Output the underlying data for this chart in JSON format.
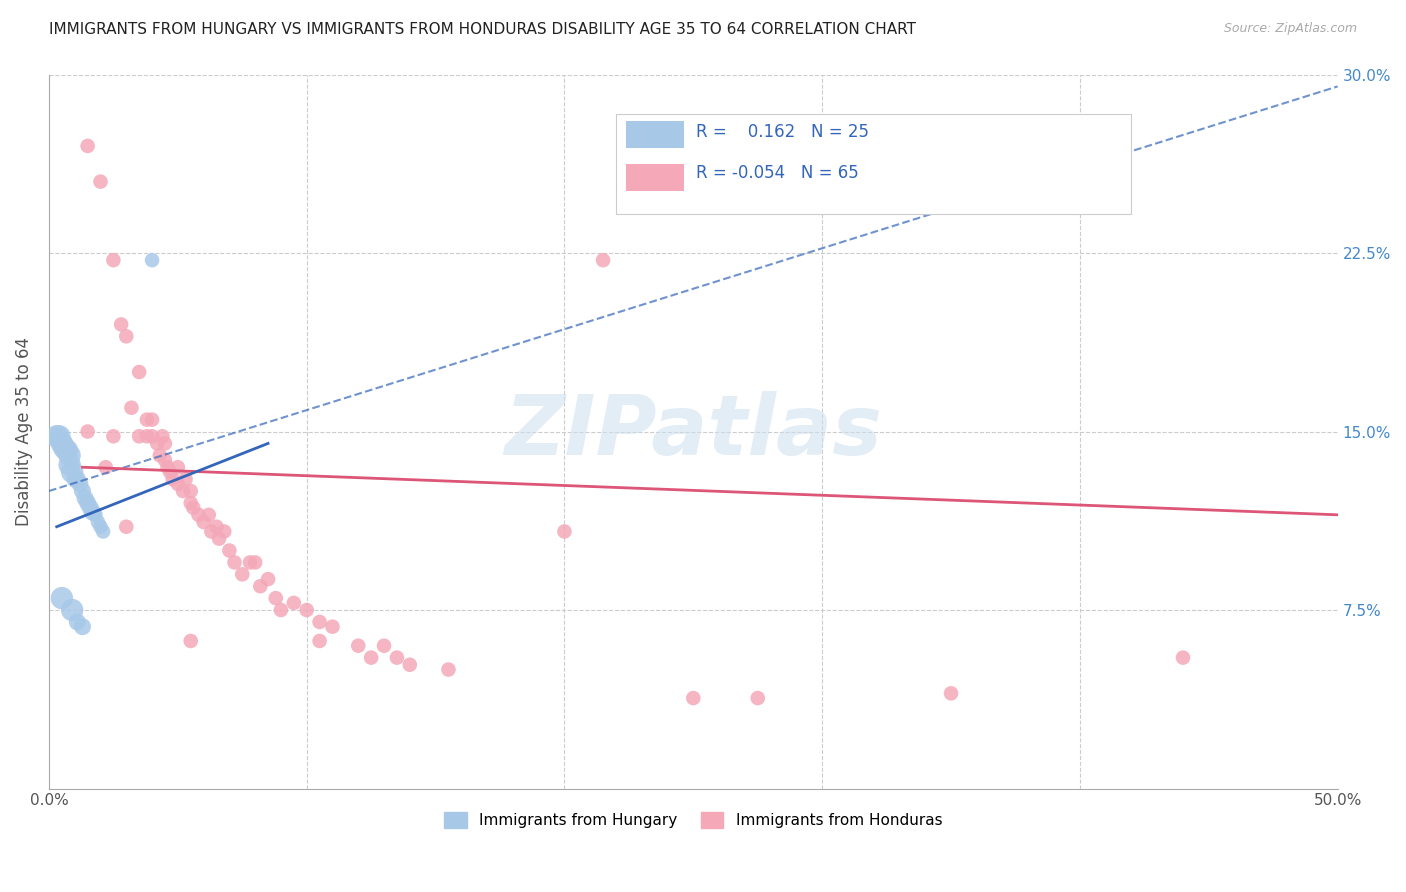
{
  "title": "IMMIGRANTS FROM HUNGARY VS IMMIGRANTS FROM HONDURAS DISABILITY AGE 35 TO 64 CORRELATION CHART",
  "source": "Source: ZipAtlas.com",
  "ylabel": "Disability Age 35 to 64",
  "xlim": [
    0.0,
    0.5
  ],
  "ylim": [
    0.0,
    0.3
  ],
  "xticks": [
    0.0,
    0.1,
    0.2,
    0.3,
    0.4,
    0.5
  ],
  "yticks": [
    0.0,
    0.075,
    0.15,
    0.225,
    0.3
  ],
  "xticklabels": [
    "0.0%",
    "",
    "",
    "",
    "",
    "50.0%"
  ],
  "yticklabels": [
    "",
    "7.5%",
    "15.0%",
    "22.5%",
    "30.0%"
  ],
  "hungary_R": 0.162,
  "hungary_N": 25,
  "honduras_R": -0.054,
  "honduras_N": 65,
  "hungary_color": "#a8c8e8",
  "honduras_color": "#f4a8b8",
  "hungary_line_color": "#3366bb",
  "honduras_line_color": "#dd5577",
  "hungary_scatter": [
    [
      0.003,
      0.148
    ],
    [
      0.004,
      0.148
    ],
    [
      0.005,
      0.145
    ],
    [
      0.006,
      0.143
    ],
    [
      0.007,
      0.142
    ],
    [
      0.008,
      0.14
    ],
    [
      0.008,
      0.136
    ],
    [
      0.009,
      0.133
    ],
    [
      0.01,
      0.13
    ],
    [
      0.011,
      0.13
    ],
    [
      0.012,
      0.128
    ],
    [
      0.013,
      0.125
    ],
    [
      0.014,
      0.122
    ],
    [
      0.015,
      0.12
    ],
    [
      0.016,
      0.118
    ],
    [
      0.017,
      0.116
    ],
    [
      0.018,
      0.115
    ],
    [
      0.019,
      0.112
    ],
    [
      0.02,
      0.11
    ],
    [
      0.021,
      0.108
    ],
    [
      0.009,
      0.075
    ],
    [
      0.011,
      0.07
    ],
    [
      0.013,
      0.068
    ],
    [
      0.04,
      0.222
    ],
    [
      0.005,
      0.08
    ]
  ],
  "honduras_scatter": [
    [
      0.015,
      0.27
    ],
    [
      0.02,
      0.255
    ],
    [
      0.025,
      0.148
    ],
    [
      0.025,
      0.222
    ],
    [
      0.028,
      0.195
    ],
    [
      0.03,
      0.19
    ],
    [
      0.032,
      0.16
    ],
    [
      0.035,
      0.175
    ],
    [
      0.035,
      0.148
    ],
    [
      0.038,
      0.155
    ],
    [
      0.038,
      0.148
    ],
    [
      0.04,
      0.148
    ],
    [
      0.04,
      0.155
    ],
    [
      0.042,
      0.145
    ],
    [
      0.043,
      0.14
    ],
    [
      0.044,
      0.148
    ],
    [
      0.045,
      0.145
    ],
    [
      0.045,
      0.138
    ],
    [
      0.046,
      0.135
    ],
    [
      0.047,
      0.133
    ],
    [
      0.048,
      0.13
    ],
    [
      0.05,
      0.128
    ],
    [
      0.05,
      0.135
    ],
    [
      0.052,
      0.125
    ],
    [
      0.053,
      0.13
    ],
    [
      0.055,
      0.125
    ],
    [
      0.055,
      0.12
    ],
    [
      0.056,
      0.118
    ],
    [
      0.058,
      0.115
    ],
    [
      0.06,
      0.112
    ],
    [
      0.062,
      0.115
    ],
    [
      0.063,
      0.108
    ],
    [
      0.065,
      0.11
    ],
    [
      0.066,
      0.105
    ],
    [
      0.068,
      0.108
    ],
    [
      0.07,
      0.1
    ],
    [
      0.072,
      0.095
    ],
    [
      0.075,
      0.09
    ],
    [
      0.078,
      0.095
    ],
    [
      0.08,
      0.095
    ],
    [
      0.082,
      0.085
    ],
    [
      0.085,
      0.088
    ],
    [
      0.088,
      0.08
    ],
    [
      0.09,
      0.075
    ],
    [
      0.095,
      0.078
    ],
    [
      0.1,
      0.075
    ],
    [
      0.105,
      0.07
    ],
    [
      0.11,
      0.068
    ],
    [
      0.12,
      0.06
    ],
    [
      0.125,
      0.055
    ],
    [
      0.13,
      0.06
    ],
    [
      0.135,
      0.055
    ],
    [
      0.14,
      0.052
    ],
    [
      0.155,
      0.05
    ],
    [
      0.2,
      0.108
    ],
    [
      0.215,
      0.222
    ],
    [
      0.25,
      0.038
    ],
    [
      0.275,
      0.038
    ],
    [
      0.35,
      0.04
    ],
    [
      0.44,
      0.055
    ],
    [
      0.015,
      0.15
    ],
    [
      0.022,
      0.135
    ],
    [
      0.03,
      0.11
    ],
    [
      0.055,
      0.062
    ],
    [
      0.105,
      0.062
    ]
  ],
  "watermark": "ZIPatlas",
  "background_color": "#ffffff",
  "grid_color": "#cccccc"
}
